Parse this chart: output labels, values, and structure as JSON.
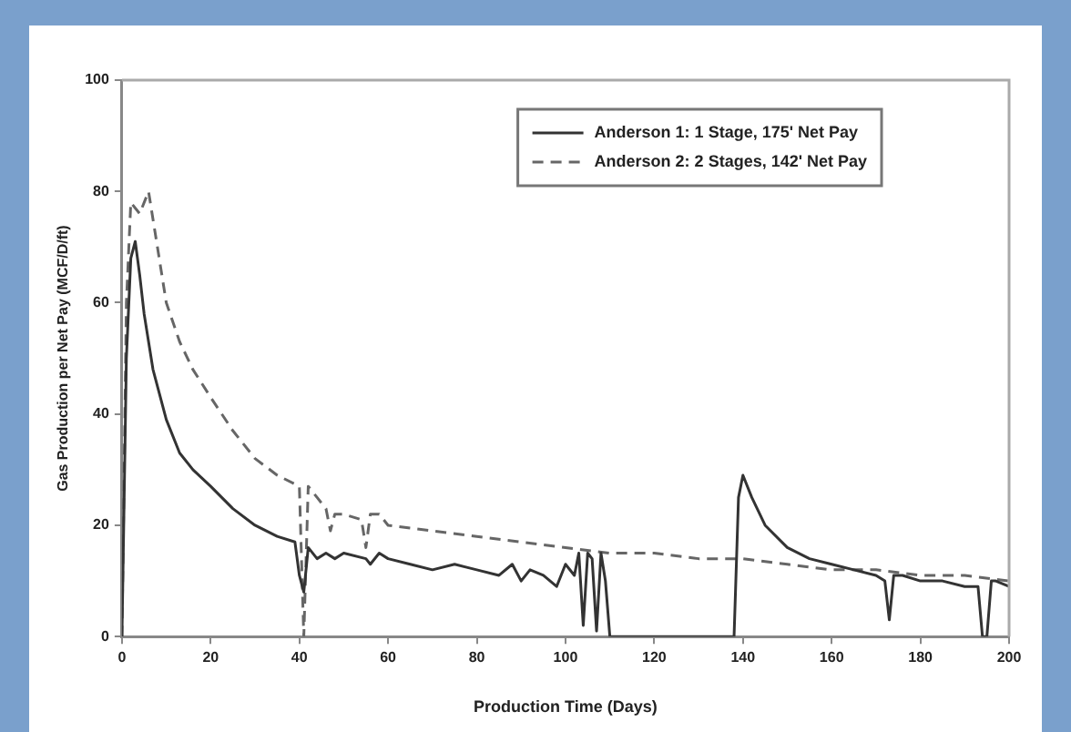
{
  "chart_data": {
    "type": "line",
    "xlabel": "Production Time (Days)",
    "ylabel": "Gas Production per Net Pay (MCF/D/ft)",
    "xlim": [
      0,
      200
    ],
    "xticks": [
      0,
      20,
      40,
      60,
      80,
      100,
      120,
      140,
      160,
      180,
      200
    ],
    "ylim": [
      0,
      100
    ],
    "yticks": [
      0,
      20,
      40,
      60,
      80,
      100
    ],
    "grid": false,
    "legend": "top right",
    "marker": "none",
    "series": [
      {
        "name": "Anderson 1: 1 Stage, 175' Net Pay",
        "color": "#333333",
        "line_style": "solid",
        "x": [
          0,
          1,
          2,
          3,
          4,
          5,
          7,
          10,
          13,
          16,
          20,
          25,
          30,
          35,
          39,
          40,
          41,
          42,
          44,
          46,
          48,
          50,
          55,
          56,
          58,
          60,
          65,
          70,
          75,
          80,
          85,
          88,
          90,
          92,
          95,
          98,
          100,
          102,
          103,
          104,
          105,
          106,
          107,
          108,
          109,
          110,
          112,
          120,
          130,
          138,
          139,
          140,
          142,
          145,
          150,
          155,
          160,
          165,
          170,
          172,
          173,
          174,
          176,
          180,
          185,
          190,
          193,
          194,
          195,
          196,
          197,
          200
        ],
        "values": [
          0,
          50,
          68,
          71,
          65,
          58,
          48,
          39,
          33,
          30,
          27,
          23,
          20,
          18,
          17,
          11,
          8,
          16,
          14,
          15,
          14,
          15,
          14,
          13,
          15,
          14,
          13,
          12,
          13,
          12,
          11,
          13,
          10,
          12,
          11,
          9,
          13,
          11,
          15,
          2,
          15,
          14,
          1,
          15,
          10,
          0,
          0,
          0,
          0,
          0,
          25,
          29,
          25,
          20,
          16,
          14,
          13,
          12,
          11,
          10,
          3,
          11,
          11,
          10,
          10,
          9,
          9,
          0,
          0,
          10,
          10,
          9
        ]
      },
      {
        "name": "Anderson 2: 2 Stages, 142' Net Pay",
        "color": "#666666",
        "line_style": "dashed",
        "x": [
          0,
          1,
          2,
          4,
          6,
          8,
          10,
          13,
          16,
          20,
          25,
          30,
          35,
          40,
          41,
          42,
          44,
          46,
          47,
          48,
          50,
          54,
          55,
          56,
          58,
          60,
          70,
          80,
          90,
          100,
          110,
          120,
          130,
          140,
          150,
          160,
          170,
          180,
          190,
          200
        ],
        "values": [
          0,
          60,
          78,
          76,
          80,
          70,
          60,
          53,
          48,
          43,
          37,
          32,
          29,
          27,
          0,
          27,
          25,
          23,
          19,
          22,
          22,
          21,
          16,
          22,
          22,
          20,
          19,
          18,
          17,
          16,
          15,
          15,
          14,
          14,
          13,
          12,
          12,
          11,
          11,
          10
        ]
      }
    ]
  }
}
